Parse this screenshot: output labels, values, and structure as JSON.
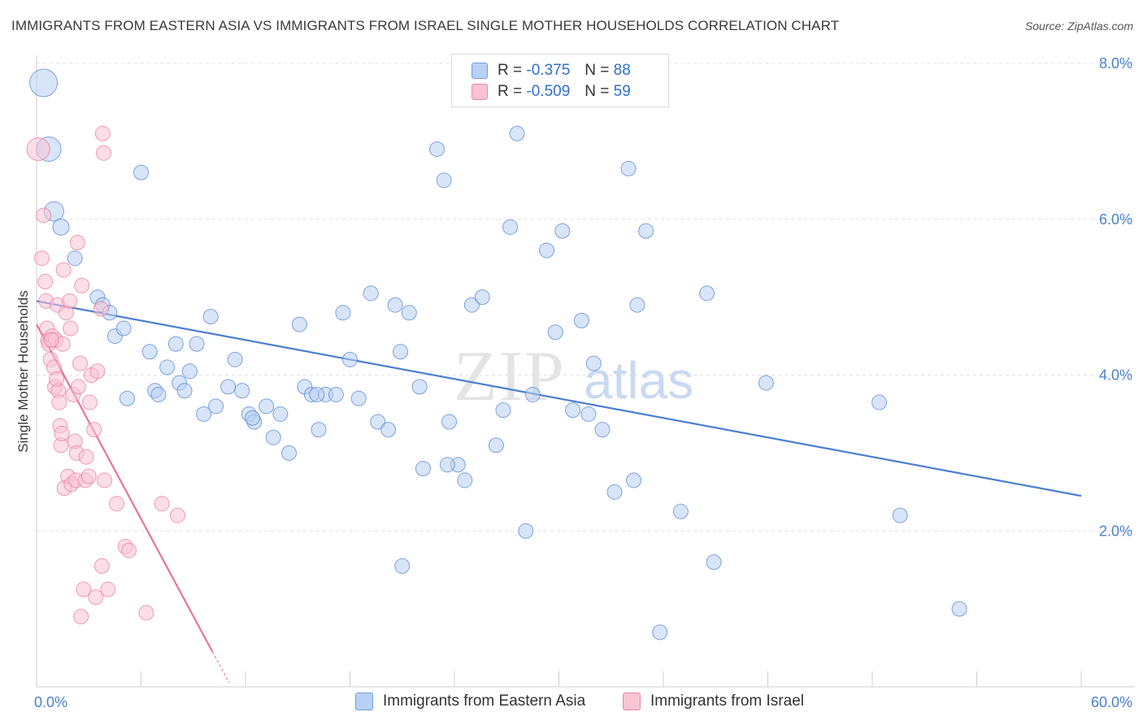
{
  "title": "IMMIGRANTS FROM EASTERN ASIA VS IMMIGRANTS FROM ISRAEL SINGLE MOTHER HOUSEHOLDS CORRELATION CHART",
  "source": "Source: ZipAtlas.com",
  "watermark": {
    "zip": "ZIP",
    "atlas": "atlas"
  },
  "legend": {
    "blue": {
      "r_label": "R =",
      "r_value": "-0.375",
      "n_label": "N =",
      "n_value": "88"
    },
    "pink": {
      "r_label": "R =",
      "r_value": "-0.509",
      "n_label": "N =",
      "n_value": "59"
    }
  },
  "colors": {
    "blue": "#4b7fd1",
    "blue_fill": "#b8d0f3",
    "pink": "#e8739a",
    "pink_fill": "#f9c3d4",
    "grid": "#e3e3e3"
  },
  "chart_data": {
    "type": "scatter",
    "ylabel": "Single Mother Households",
    "xlabel": "",
    "xlim": [
      0,
      60
    ],
    "ylim": [
      0,
      8
    ],
    "x_tick_labels": [
      "0.0%",
      "60.0%"
    ],
    "y_ticks": [
      {
        "value": 2,
        "label": "2.0%"
      },
      {
        "value": 4,
        "label": "4.0%"
      },
      {
        "value": 6,
        "label": "6.0%"
      },
      {
        "value": 8,
        "label": "8.0%"
      }
    ],
    "grid": true,
    "series": [
      {
        "name": "Immigrants from Eastern Asia",
        "color": "#4b7fd1",
        "trend": {
          "x": [
            0,
            60
          ],
          "y": [
            4.95,
            2.45
          ]
        },
        "points": [
          [
            0.4,
            7.75
          ],
          [
            0.7,
            6.9
          ],
          [
            1.0,
            6.1
          ],
          [
            1.4,
            5.9
          ],
          [
            2.2,
            5.5
          ],
          [
            3.5,
            5.0
          ],
          [
            3.8,
            4.9
          ],
          [
            4.2,
            4.8
          ],
          [
            4.5,
            4.5
          ],
          [
            5.0,
            4.6
          ],
          [
            5.2,
            3.7
          ],
          [
            6.0,
            6.6
          ],
          [
            6.5,
            4.3
          ],
          [
            6.8,
            3.8
          ],
          [
            7.0,
            3.75
          ],
          [
            7.5,
            4.1
          ],
          [
            8.0,
            4.4
          ],
          [
            8.2,
            3.9
          ],
          [
            8.5,
            3.8
          ],
          [
            8.8,
            4.05
          ],
          [
            9.2,
            4.4
          ],
          [
            9.6,
            3.5
          ],
          [
            10.0,
            4.75
          ],
          [
            10.3,
            3.6
          ],
          [
            11.0,
            3.85
          ],
          [
            11.4,
            4.2
          ],
          [
            11.8,
            3.8
          ],
          [
            12.2,
            3.5
          ],
          [
            12.5,
            3.4
          ],
          [
            13.2,
            3.6
          ],
          [
            13.6,
            3.2
          ],
          [
            14.0,
            3.5
          ],
          [
            14.5,
            3.0
          ],
          [
            15.1,
            4.65
          ],
          [
            15.4,
            3.85
          ],
          [
            15.8,
            3.75
          ],
          [
            16.2,
            3.3
          ],
          [
            16.6,
            3.75
          ],
          [
            17.2,
            3.75
          ],
          [
            17.6,
            4.8
          ],
          [
            18.0,
            4.2
          ],
          [
            18.5,
            3.7
          ],
          [
            19.2,
            5.05
          ],
          [
            19.6,
            3.4
          ],
          [
            20.2,
            3.3
          ],
          [
            20.6,
            4.9
          ],
          [
            20.9,
            4.3
          ],
          [
            21.4,
            4.8
          ],
          [
            22.0,
            3.85
          ],
          [
            22.2,
            2.8
          ],
          [
            23.0,
            6.9
          ],
          [
            23.4,
            6.5
          ],
          [
            23.7,
            3.4
          ],
          [
            24.2,
            2.85
          ],
          [
            24.6,
            2.65
          ],
          [
            25.0,
            4.9
          ],
          [
            25.6,
            5.0
          ],
          [
            26.4,
            3.1
          ],
          [
            26.8,
            3.55
          ],
          [
            27.2,
            5.9
          ],
          [
            27.6,
            7.1
          ],
          [
            28.1,
            2.0
          ],
          [
            28.5,
            3.75
          ],
          [
            29.3,
            5.6
          ],
          [
            29.8,
            4.55
          ],
          [
            30.2,
            5.85
          ],
          [
            30.8,
            3.55
          ],
          [
            31.3,
            4.7
          ],
          [
            31.7,
            3.5
          ],
          [
            32.0,
            4.15
          ],
          [
            32.5,
            3.3
          ],
          [
            33.2,
            2.5
          ],
          [
            34.0,
            6.65
          ],
          [
            34.3,
            2.65
          ],
          [
            34.5,
            4.9
          ],
          [
            35.0,
            5.85
          ],
          [
            35.8,
            0.7
          ],
          [
            37.0,
            2.25
          ],
          [
            38.5,
            5.05
          ],
          [
            38.9,
            1.6
          ],
          [
            41.9,
            3.9
          ],
          [
            48.4,
            3.65
          ],
          [
            49.6,
            2.2
          ],
          [
            53.0,
            1.0
          ],
          [
            21.0,
            1.55
          ],
          [
            12.4,
            3.45
          ],
          [
            16.1,
            3.75
          ],
          [
            23.6,
            2.85
          ]
        ]
      },
      {
        "name": "Immigrants from Israel",
        "color": "#e8739a",
        "trend": {
          "x": [
            0,
            10.1
          ],
          "y": [
            4.65,
            0.45
          ]
        },
        "points": [
          [
            0.1,
            6.9
          ],
          [
            0.3,
            5.5
          ],
          [
            0.4,
            6.05
          ],
          [
            0.5,
            5.2
          ],
          [
            0.55,
            4.95
          ],
          [
            0.6,
            4.6
          ],
          [
            0.65,
            4.45
          ],
          [
            0.7,
            4.4
          ],
          [
            0.8,
            4.2
          ],
          [
            0.9,
            4.5
          ],
          [
            1.0,
            4.1
          ],
          [
            1.05,
            3.85
          ],
          [
            1.1,
            4.45
          ],
          [
            1.2,
            4.9
          ],
          [
            1.25,
            3.8
          ],
          [
            1.3,
            3.65
          ],
          [
            1.35,
            3.35
          ],
          [
            1.4,
            3.1
          ],
          [
            1.45,
            3.25
          ],
          [
            1.5,
            4.4
          ],
          [
            1.55,
            5.35
          ],
          [
            1.6,
            2.55
          ],
          [
            1.7,
            4.8
          ],
          [
            1.8,
            2.7
          ],
          [
            1.9,
            4.95
          ],
          [
            1.95,
            4.6
          ],
          [
            2.0,
            2.6
          ],
          [
            2.1,
            3.75
          ],
          [
            2.2,
            3.15
          ],
          [
            2.25,
            2.65
          ],
          [
            2.3,
            3.0
          ],
          [
            2.35,
            5.7
          ],
          [
            2.4,
            3.85
          ],
          [
            2.5,
            4.15
          ],
          [
            2.55,
            0.9
          ],
          [
            2.6,
            5.15
          ],
          [
            2.7,
            1.25
          ],
          [
            2.8,
            2.65
          ],
          [
            2.85,
            2.95
          ],
          [
            3.0,
            2.7
          ],
          [
            3.05,
            3.65
          ],
          [
            3.15,
            4.0
          ],
          [
            3.3,
            3.3
          ],
          [
            3.4,
            1.15
          ],
          [
            3.5,
            4.05
          ],
          [
            3.7,
            4.85
          ],
          [
            3.75,
            1.55
          ],
          [
            3.8,
            7.1
          ],
          [
            3.85,
            6.85
          ],
          [
            3.9,
            2.65
          ],
          [
            4.1,
            1.25
          ],
          [
            4.6,
            2.35
          ],
          [
            5.1,
            1.8
          ],
          [
            5.3,
            1.75
          ],
          [
            6.3,
            0.95
          ],
          [
            7.2,
            2.35
          ],
          [
            8.1,
            2.2
          ],
          [
            1.15,
            3.95
          ],
          [
            0.85,
            4.45
          ]
        ]
      }
    ]
  }
}
